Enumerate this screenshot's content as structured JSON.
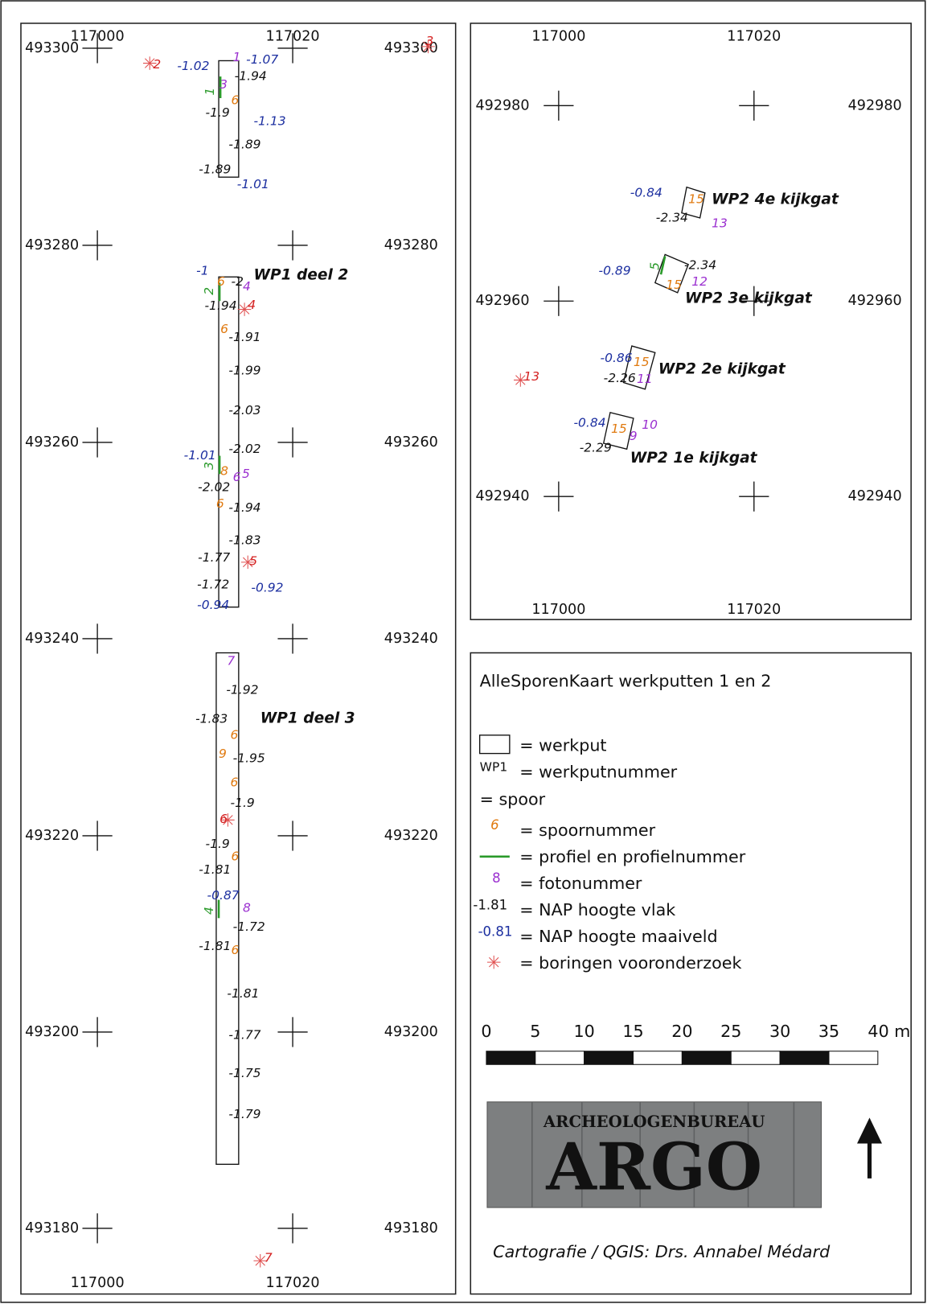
{
  "map_wp1": {
    "x_labels": [
      117000,
      117020
    ],
    "y_labels": [
      493300,
      493280,
      493260,
      493240,
      493220,
      493200,
      493180
    ],
    "trench_names": [
      "WP1 deel 2",
      "WP1 deel 3"
    ],
    "profiles": [
      "1",
      "2",
      "3",
      "4"
    ],
    "annotations": [
      "2",
      "-1.02",
      "1",
      "-1.07",
      "-1.94",
      "3",
      "6",
      "-1.9",
      "-1.13",
      "-1.89",
      "-1.89",
      "-1.01",
      "3",
      "-1",
      "6",
      "-2",
      "4",
      "-1.94",
      "4",
      "6",
      "-1.91",
      "-1.99",
      "-2.03",
      "-1.01",
      "-2.02",
      "8",
      "6",
      "5",
      "-2.02",
      "6",
      "-1.94",
      "-1.83",
      "-1.77",
      "5",
      "-1.72",
      "-0.92",
      "-0.94",
      "7",
      "-1.92",
      "-1.83",
      "6",
      "9",
      "-1.95",
      "6",
      "-1.9",
      "6",
      "-1.9",
      "6",
      "-1.81",
      "-0.87",
      "8",
      "-1.72",
      "-1.81",
      "6",
      "-1.81",
      "-1.77",
      "-1.75",
      "-1.79",
      "7"
    ]
  },
  "map_wp2": {
    "x_labels": [
      117000,
      117020
    ],
    "y_labels": [
      492980,
      492960,
      492940
    ],
    "trench_names": [
      "WP2 4e kijkgat",
      "WP2 3e kijkgat",
      "WP2 2e kijkgat",
      "WP2 1e kijkgat"
    ],
    "profiles": [
      "5"
    ],
    "annotations": [
      "-0.84",
      "15",
      "-2.34",
      "13",
      "-0.89",
      "-2.34",
      "15",
      "12",
      "-0.86",
      "15",
      "-2.26",
      "11",
      "13",
      "-0.84",
      "15",
      "10",
      "9",
      "-2.29"
    ]
  },
  "legend": {
    "title": "AlleSporenKaart werkputten 1 en 2",
    "entries": [
      {
        "text": "= werkput"
      },
      {
        "symbol": "WP1",
        "text": "= werkputnummer"
      },
      {
        "text": "= spoor"
      },
      {
        "symbol": "6",
        "text": "= spoornummer"
      },
      {
        "text": "= profiel en profielnummer"
      },
      {
        "symbol": "8",
        "text": "= fotonummer"
      },
      {
        "symbol": "-1.81",
        "text": "= NAP hoogte vlak"
      },
      {
        "symbol": "-0.81",
        "text": "= NAP hoogte maaiveld"
      },
      {
        "text": "= boringen vooronderzoek"
      }
    ],
    "scale_labels": [
      0,
      5,
      10,
      15,
      20,
      25,
      30,
      35,
      "40 m"
    ]
  },
  "logo": {
    "line1": "ARCHEOLOGENBUREAU",
    "line2": "ARGO"
  },
  "credit": "Cartografie / QGIS: Drs. Annabel Médard"
}
